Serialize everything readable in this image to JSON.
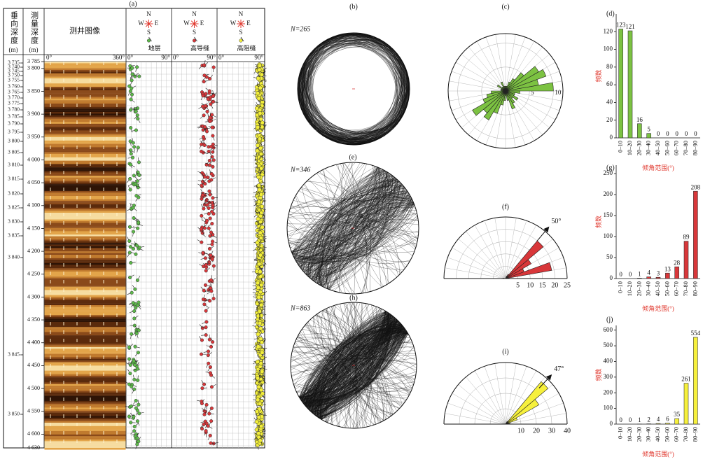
{
  "well_log": {
    "label": "(a)",
    "tvd_header": "垂向深度",
    "md_header": "测量深度",
    "unit": "(m)",
    "image_header": "测井图像",
    "image_scale": [
      "0°",
      "360°"
    ],
    "dip_scale": [
      "0°",
      "90°"
    ],
    "compass": [
      "N",
      "W",
      "E",
      "S"
    ],
    "tracks": [
      "地层",
      "高导缝",
      "高阻缝"
    ],
    "tvd_labels": [
      "3 735",
      "3 740",
      "3 745",
      "3 750",
      "3 755",
      "3 760",
      "3 765",
      "3 770",
      "3 775",
      "3 780",
      "3 785",
      "3 790",
      "3 795",
      "3 800",
      "3 805",
      "3 810",
      "3 815",
      "3 820",
      "3 825",
      "3 830",
      "3 835",
      "3 840",
      "3 845",
      "3 850"
    ],
    "md_lim": [
      3785,
      4630
    ],
    "md_ticks": [
      {
        "value": 3785,
        "label": "3 785"
      },
      {
        "value": 3800,
        "label": "3 800"
      },
      {
        "value": 3850,
        "label": "3 850"
      },
      {
        "value": 3900,
        "label": "3 900"
      },
      {
        "value": 3950,
        "label": "3 950"
      },
      {
        "value": 4000,
        "label": "4 000"
      },
      {
        "value": 4050,
        "label": "4 050"
      },
      {
        "value": 4100,
        "label": "4 100"
      },
      {
        "value": 4150,
        "label": "4 150"
      },
      {
        "value": 4200,
        "label": "4 200"
      },
      {
        "value": 4250,
        "label": "4 250"
      },
      {
        "value": 4300,
        "label": "4 300"
      },
      {
        "value": 4350,
        "label": "4 350"
      },
      {
        "value": 4400,
        "label": "4 400"
      },
      {
        "value": 4450,
        "label": "4 450"
      },
      {
        "value": 4500,
        "label": "4 500"
      },
      {
        "value": 4550,
        "label": "4 550"
      },
      {
        "value": 4600,
        "label": "4 600"
      },
      {
        "value": 4630,
        "label": "4 630"
      }
    ]
  },
  "stereonets": [
    {
      "label": "(b)",
      "n": "N=265"
    },
    {
      "label": "(e)",
      "n": "N=346"
    },
    {
      "label": "(h)",
      "n": "N=863"
    }
  ],
  "chart_data": [
    {
      "type": "rose",
      "title": "(c)",
      "zero": "north",
      "color": "#7cc242",
      "x": [
        0,
        10,
        20,
        30,
        40,
        50,
        60,
        70,
        80,
        90,
        100,
        110,
        120,
        130,
        140,
        150,
        160,
        170,
        180,
        190,
        200,
        210,
        220,
        230,
        240,
        250,
        260,
        270,
        280,
        290,
        300,
        310,
        320,
        330,
        340,
        350
      ],
      "values": [
        1,
        1,
        2,
        3,
        5,
        8,
        9,
        7,
        10,
        3,
        2,
        2,
        3,
        2,
        3,
        4,
        2,
        1,
        2,
        3,
        5,
        7,
        6,
        8,
        5,
        4,
        3,
        1,
        1,
        1,
        2,
        1,
        1,
        2,
        1,
        1
      ],
      "rlim": [
        0,
        12
      ],
      "rticks": [
        5,
        10
      ]
    },
    {
      "type": "rose",
      "title": "(f)",
      "zero": "east",
      "color": "#d8373a",
      "x": [
        0,
        10,
        20,
        30,
        40,
        50,
        60,
        70,
        80,
        90,
        100,
        110,
        120,
        130,
        140,
        150,
        160,
        170
      ],
      "values": [
        1,
        19,
        8,
        12,
        20,
        2,
        1,
        0,
        0,
        0,
        0,
        0,
        0,
        0,
        0,
        0,
        0,
        1
      ],
      "rlim": [
        0,
        25
      ],
      "rticks": [
        5,
        10,
        15,
        20,
        25
      ],
      "annotation": {
        "value": 50,
        "label": "50°"
      }
    },
    {
      "type": "rose",
      "title": "(i)",
      "zero": "east",
      "color": "#f6f03c",
      "x": [
        0,
        10,
        20,
        30,
        40,
        50,
        60,
        70,
        80,
        90,
        100,
        110,
        120,
        130,
        140,
        150,
        160,
        170
      ],
      "values": [
        1,
        3,
        8,
        25,
        36,
        2,
        0,
        0,
        0,
        0,
        0,
        0,
        0,
        0,
        0,
        0,
        0,
        1
      ],
      "rlim": [
        0,
        40
      ],
      "rticks": [
        10,
        20,
        30,
        40
      ],
      "annotation": {
        "value": 47,
        "label": "47°"
      }
    },
    {
      "type": "bar",
      "title": "(d)",
      "color": "#7cc242",
      "categories": [
        "0–10",
        "10–20",
        "20–30",
        "30–40",
        "40–50",
        "50–60",
        "60–70",
        "70–80",
        "80–90"
      ],
      "values": [
        123,
        121,
        16,
        5,
        0,
        0,
        0,
        0,
        0
      ],
      "ylim": [
        0,
        140
      ],
      "yticks": [
        0,
        20,
        40,
        60,
        80,
        100,
        120
      ],
      "xlabel": "倾角范围(°)",
      "ylabel": "频数"
    },
    {
      "type": "bar",
      "title": "(g)",
      "color": "#d8373a",
      "categories": [
        "0–10",
        "10–20",
        "20–30",
        "30–40",
        "40–50",
        "50–60",
        "60–70",
        "70–80",
        "80–90"
      ],
      "values": [
        0,
        0,
        1,
        4,
        3,
        13,
        28,
        89,
        208
      ],
      "ylim": [
        0,
        270
      ],
      "yticks": [
        0,
        50,
        100,
        150,
        200,
        250
      ],
      "xlabel": "倾角范围(°)",
      "ylabel": "频数"
    },
    {
      "type": "bar",
      "title": "(j)",
      "color": "#f6f03c",
      "categories": [
        "0–10",
        "10–20",
        "20–30",
        "30–40",
        "40–50",
        "50–60",
        "60–70",
        "70–80",
        "80–90"
      ],
      "values": [
        0,
        0,
        1,
        2,
        4,
        6,
        35,
        261,
        554
      ],
      "ylim": [
        0,
        630
      ],
      "yticks": [
        0,
        100,
        200,
        300,
        400,
        500,
        600
      ],
      "xlabel": "倾角范围(°)",
      "ylabel": "频数"
    }
  ]
}
